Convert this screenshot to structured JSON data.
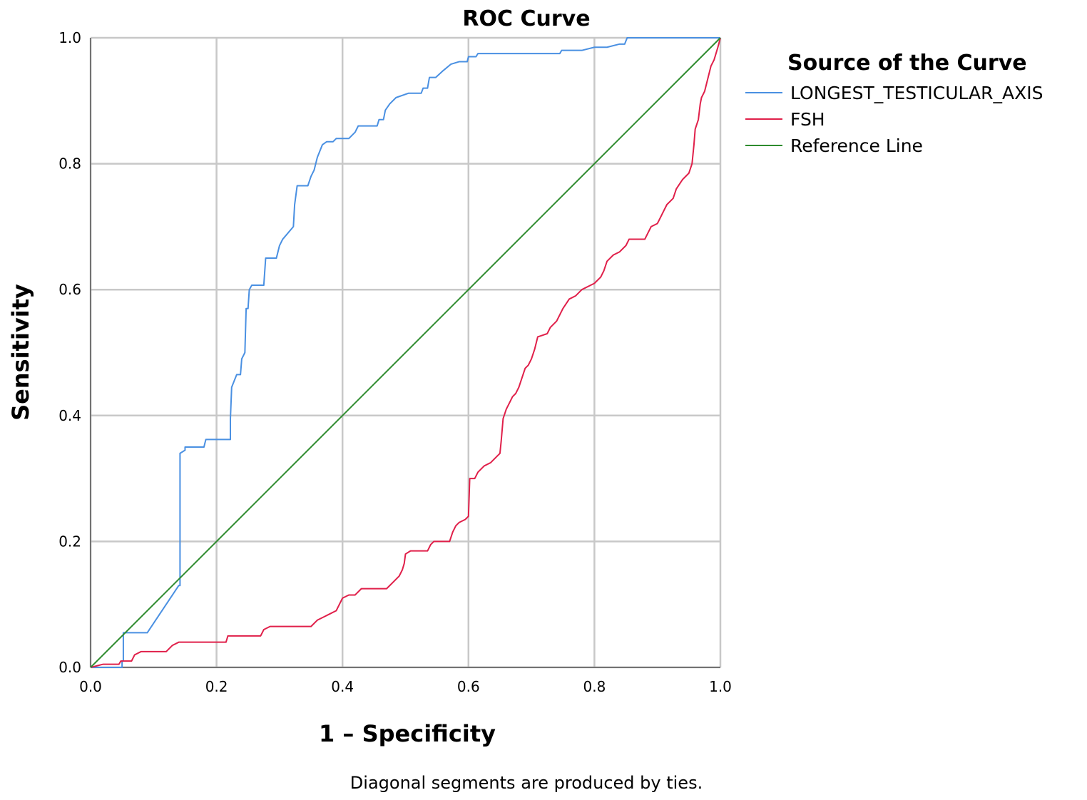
{
  "chart_data": {
    "type": "line",
    "title": "ROC Curve",
    "xlabel": "1 – Specificity",
    "ylabel": "Sensitivity",
    "xlim": [
      0,
      1
    ],
    "ylim": [
      0,
      1
    ],
    "xticks": [
      "0.0",
      "0.2",
      "0.4",
      "0.6",
      "0.8",
      "1.0"
    ],
    "yticks": [
      "0.0",
      "0.2",
      "0.4",
      "0.6",
      "0.8",
      "1.0"
    ],
    "grid": true,
    "legend": {
      "title": "Source of the Curve",
      "placement": "right"
    },
    "footnote": "Diagonal segments are produced by ties.",
    "series": [
      {
        "name": "LONGEST_TESTICULAR_AXIS",
        "color": "#4a90e2",
        "points": [
          [
            0.0,
            0.0
          ],
          [
            0.05,
            0.0
          ],
          [
            0.05,
            0.01
          ],
          [
            0.052,
            0.01
          ],
          [
            0.052,
            0.055
          ],
          [
            0.09,
            0.055
          ],
          [
            0.14,
            0.13
          ],
          [
            0.142,
            0.13
          ],
          [
            0.142,
            0.34
          ],
          [
            0.15,
            0.345
          ],
          [
            0.15,
            0.35
          ],
          [
            0.18,
            0.35
          ],
          [
            0.183,
            0.362
          ],
          [
            0.222,
            0.362
          ],
          [
            0.222,
            0.395
          ],
          [
            0.224,
            0.445
          ],
          [
            0.232,
            0.465
          ],
          [
            0.238,
            0.465
          ],
          [
            0.24,
            0.49
          ],
          [
            0.245,
            0.5
          ],
          [
            0.247,
            0.57
          ],
          [
            0.25,
            0.57
          ],
          [
            0.252,
            0.6
          ],
          [
            0.256,
            0.607
          ],
          [
            0.275,
            0.607
          ],
          [
            0.278,
            0.65
          ],
          [
            0.295,
            0.65
          ],
          [
            0.3,
            0.67
          ],
          [
            0.305,
            0.68
          ],
          [
            0.322,
            0.7
          ],
          [
            0.324,
            0.735
          ],
          [
            0.328,
            0.765
          ],
          [
            0.345,
            0.765
          ],
          [
            0.35,
            0.78
          ],
          [
            0.355,
            0.79
          ],
          [
            0.36,
            0.81
          ],
          [
            0.368,
            0.83
          ],
          [
            0.375,
            0.835
          ],
          [
            0.385,
            0.835
          ],
          [
            0.39,
            0.84
          ],
          [
            0.41,
            0.84
          ],
          [
            0.42,
            0.85
          ],
          [
            0.425,
            0.86
          ],
          [
            0.455,
            0.86
          ],
          [
            0.458,
            0.87
          ],
          [
            0.465,
            0.87
          ],
          [
            0.468,
            0.885
          ],
          [
            0.475,
            0.895
          ],
          [
            0.485,
            0.905
          ],
          [
            0.505,
            0.912
          ],
          [
            0.525,
            0.912
          ],
          [
            0.528,
            0.92
          ],
          [
            0.535,
            0.92
          ],
          [
            0.538,
            0.937
          ],
          [
            0.548,
            0.937
          ],
          [
            0.56,
            0.948
          ],
          [
            0.572,
            0.958
          ],
          [
            0.585,
            0.962
          ],
          [
            0.598,
            0.962
          ],
          [
            0.6,
            0.97
          ],
          [
            0.612,
            0.97
          ],
          [
            0.615,
            0.975
          ],
          [
            0.745,
            0.975
          ],
          [
            0.748,
            0.98
          ],
          [
            0.78,
            0.98
          ],
          [
            0.8,
            0.985
          ],
          [
            0.82,
            0.985
          ],
          [
            0.84,
            0.99
          ],
          [
            0.848,
            0.99
          ],
          [
            0.852,
            1.0
          ],
          [
            1.0,
            1.0
          ]
        ]
      },
      {
        "name": "FSH",
        "color": "#e0204a",
        "points": [
          [
            0.0,
            0.0
          ],
          [
            0.02,
            0.005
          ],
          [
            0.045,
            0.005
          ],
          [
            0.048,
            0.01
          ],
          [
            0.065,
            0.01
          ],
          [
            0.07,
            0.02
          ],
          [
            0.08,
            0.025
          ],
          [
            0.12,
            0.025
          ],
          [
            0.13,
            0.035
          ],
          [
            0.14,
            0.04
          ],
          [
            0.215,
            0.04
          ],
          [
            0.218,
            0.05
          ],
          [
            0.27,
            0.05
          ],
          [
            0.275,
            0.06
          ],
          [
            0.285,
            0.065
          ],
          [
            0.35,
            0.065
          ],
          [
            0.36,
            0.075
          ],
          [
            0.37,
            0.08
          ],
          [
            0.38,
            0.085
          ],
          [
            0.39,
            0.09
          ],
          [
            0.395,
            0.1
          ],
          [
            0.4,
            0.11
          ],
          [
            0.41,
            0.115
          ],
          [
            0.42,
            0.115
          ],
          [
            0.43,
            0.125
          ],
          [
            0.47,
            0.125
          ],
          [
            0.48,
            0.135
          ],
          [
            0.49,
            0.145
          ],
          [
            0.495,
            0.155
          ],
          [
            0.498,
            0.165
          ],
          [
            0.5,
            0.18
          ],
          [
            0.508,
            0.185
          ],
          [
            0.535,
            0.185
          ],
          [
            0.54,
            0.195
          ],
          [
            0.545,
            0.2
          ],
          [
            0.57,
            0.2
          ],
          [
            0.575,
            0.215
          ],
          [
            0.58,
            0.225
          ],
          [
            0.585,
            0.23
          ],
          [
            0.595,
            0.235
          ],
          [
            0.6,
            0.24
          ],
          [
            0.602,
            0.3
          ],
          [
            0.61,
            0.3
          ],
          [
            0.615,
            0.31
          ],
          [
            0.625,
            0.32
          ],
          [
            0.635,
            0.325
          ],
          [
            0.645,
            0.335
          ],
          [
            0.65,
            0.34
          ],
          [
            0.652,
            0.36
          ],
          [
            0.655,
            0.395
          ],
          [
            0.66,
            0.41
          ],
          [
            0.665,
            0.42
          ],
          [
            0.67,
            0.43
          ],
          [
            0.675,
            0.435
          ],
          [
            0.68,
            0.445
          ],
          [
            0.685,
            0.46
          ],
          [
            0.69,
            0.475
          ],
          [
            0.695,
            0.48
          ],
          [
            0.7,
            0.49
          ],
          [
            0.705,
            0.505
          ],
          [
            0.71,
            0.525
          ],
          [
            0.725,
            0.53
          ],
          [
            0.73,
            0.54
          ],
          [
            0.74,
            0.55
          ],
          [
            0.75,
            0.57
          ],
          [
            0.76,
            0.585
          ],
          [
            0.77,
            0.59
          ],
          [
            0.78,
            0.6
          ],
          [
            0.79,
            0.605
          ],
          [
            0.8,
            0.61
          ],
          [
            0.81,
            0.62
          ],
          [
            0.815,
            0.63
          ],
          [
            0.82,
            0.645
          ],
          [
            0.83,
            0.655
          ],
          [
            0.84,
            0.66
          ],
          [
            0.85,
            0.67
          ],
          [
            0.855,
            0.68
          ],
          [
            0.88,
            0.68
          ],
          [
            0.885,
            0.69
          ],
          [
            0.89,
            0.7
          ],
          [
            0.9,
            0.705
          ],
          [
            0.905,
            0.715
          ],
          [
            0.91,
            0.725
          ],
          [
            0.915,
            0.735
          ],
          [
            0.925,
            0.745
          ],
          [
            0.93,
            0.76
          ],
          [
            0.94,
            0.775
          ],
          [
            0.945,
            0.78
          ],
          [
            0.95,
            0.785
          ],
          [
            0.955,
            0.8
          ],
          [
            0.958,
            0.83
          ],
          [
            0.96,
            0.855
          ],
          [
            0.965,
            0.87
          ],
          [
            0.968,
            0.895
          ],
          [
            0.97,
            0.905
          ],
          [
            0.975,
            0.915
          ],
          [
            0.98,
            0.935
          ],
          [
            0.985,
            0.955
          ],
          [
            0.99,
            0.965
          ],
          [
            0.993,
            0.975
          ],
          [
            0.996,
            0.985
          ],
          [
            1.0,
            1.0
          ]
        ]
      },
      {
        "name": "Reference Line",
        "color": "#2e8b2e",
        "points": [
          [
            0,
            0
          ],
          [
            1,
            1
          ]
        ]
      }
    ]
  }
}
